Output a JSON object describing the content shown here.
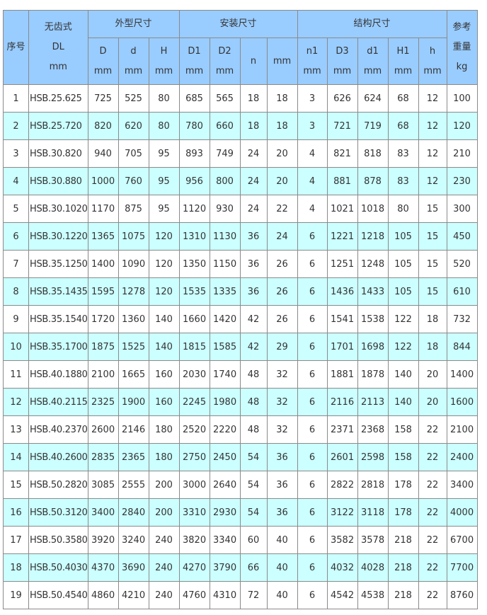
{
  "colors": {
    "header_bg": "#99ccff",
    "alt_row_bg": "#ccffff",
    "border": "#8a8a8a"
  },
  "header": {
    "index": "序号",
    "model": [
      "无齿式",
      "DL",
      "mm"
    ],
    "group_outer": "外型尺寸",
    "group_install": "安装尺寸",
    "group_struct": "结构尺寸",
    "weight": [
      "参考",
      "重量",
      "kg"
    ],
    "sub": [
      [
        "D",
        "mm"
      ],
      [
        "d",
        "mm"
      ],
      [
        "H",
        "mm"
      ],
      [
        "D1",
        "mm"
      ],
      [
        "D2",
        "mm"
      ],
      [
        "n",
        ""
      ],
      [
        "mm",
        ""
      ],
      [
        "n1",
        "mm"
      ],
      [
        "D3",
        "mm"
      ],
      [
        "d1",
        "mm"
      ],
      [
        "H1",
        "mm"
      ],
      [
        "h",
        "mm"
      ]
    ]
  },
  "rows": [
    [
      "1",
      "HSB.25.625",
      "725",
      "525",
      "80",
      "685",
      "565",
      "18",
      "18",
      "3",
      "626",
      "624",
      "68",
      "12",
      "100"
    ],
    [
      "2",
      "HSB.25.720",
      "820",
      "620",
      "80",
      "780",
      "660",
      "18",
      "18",
      "3",
      "721",
      "719",
      "68",
      "12",
      "120"
    ],
    [
      "3",
      "HSB.30.820",
      "940",
      "705",
      "95",
      "893",
      "749",
      "24",
      "20",
      "4",
      "821",
      "818",
      "83",
      "12",
      "210"
    ],
    [
      "4",
      "HSB.30.880",
      "1000",
      "760",
      "95",
      "956",
      "800",
      "24",
      "20",
      "4",
      "881",
      "878",
      "83",
      "12",
      "230"
    ],
    [
      "5",
      "HSB.30.1020",
      "1170",
      "875",
      "95",
      "1120",
      "930",
      "24",
      "22",
      "4",
      "1021",
      "1018",
      "80",
      "15",
      "300"
    ],
    [
      "6",
      "HSB.30.1220",
      "1365",
      "1075",
      "120",
      "1310",
      "1130",
      "36",
      "24",
      "6",
      "1221",
      "1218",
      "105",
      "15",
      "450"
    ],
    [
      "7",
      "HSB.35.1250",
      "1400",
      "1090",
      "120",
      "1350",
      "1150",
      "36",
      "26",
      "6",
      "1251",
      "1248",
      "105",
      "15",
      "520"
    ],
    [
      "8",
      "HSB.35.1435",
      "1595",
      "1278",
      "120",
      "1535",
      "1335",
      "36",
      "26",
      "6",
      "1436",
      "1433",
      "105",
      "15",
      "610"
    ],
    [
      "9",
      "HSB.35.1540",
      "1720",
      "1360",
      "140",
      "1660",
      "1420",
      "42",
      "26",
      "6",
      "1541",
      "1538",
      "122",
      "18",
      "732"
    ],
    [
      "10",
      "HSB.35.1700",
      "1875",
      "1525",
      "140",
      "1815",
      "1585",
      "42",
      "29",
      "6",
      "1701",
      "1698",
      "122",
      "18",
      "844"
    ],
    [
      "11",
      "HSB.40.1880",
      "2100",
      "1665",
      "160",
      "2030",
      "1740",
      "48",
      "32",
      "6",
      "1881",
      "1878",
      "140",
      "20",
      "1400"
    ],
    [
      "12",
      "HSB.40.2115",
      "2325",
      "1900",
      "160",
      "2245",
      "1980",
      "48",
      "32",
      "6",
      "2116",
      "2113",
      "140",
      "20",
      "1600"
    ],
    [
      "13",
      "HSB.40.2370",
      "2600",
      "2146",
      "180",
      "2520",
      "2220",
      "48",
      "32",
      "6",
      "2371",
      "2368",
      "158",
      "22",
      "2100"
    ],
    [
      "14",
      "HSB.40.2600",
      "2835",
      "2365",
      "180",
      "2750",
      "2450",
      "54",
      "36",
      "6",
      "2601",
      "2598",
      "158",
      "22",
      "2400"
    ],
    [
      "15",
      "HSB.50.2820",
      "3085",
      "2555",
      "200",
      "3000",
      "2640",
      "54",
      "36",
      "6",
      "2822",
      "2818",
      "178",
      "22",
      "3400"
    ],
    [
      "16",
      "HSB.50.3120",
      "3400",
      "2840",
      "200",
      "3310",
      "2930",
      "54",
      "36",
      "6",
      "3122",
      "3118",
      "178",
      "22",
      "4000"
    ],
    [
      "17",
      "HSB.50.3580",
      "3920",
      "3240",
      "240",
      "3820",
      "3340",
      "60",
      "40",
      "6",
      "3582",
      "3578",
      "218",
      "22",
      "6700"
    ],
    [
      "18",
      "HSB.50.4030",
      "4370",
      "3690",
      "240",
      "4270",
      "3790",
      "66",
      "40",
      "6",
      "4032",
      "4028",
      "218",
      "22",
      "7700"
    ],
    [
      "19",
      "HSB.50.4540",
      "4860",
      "4210",
      "240",
      "4760",
      "4310",
      "72",
      "40",
      "6",
      "4542",
      "4538",
      "218",
      "22",
      "8760"
    ]
  ]
}
